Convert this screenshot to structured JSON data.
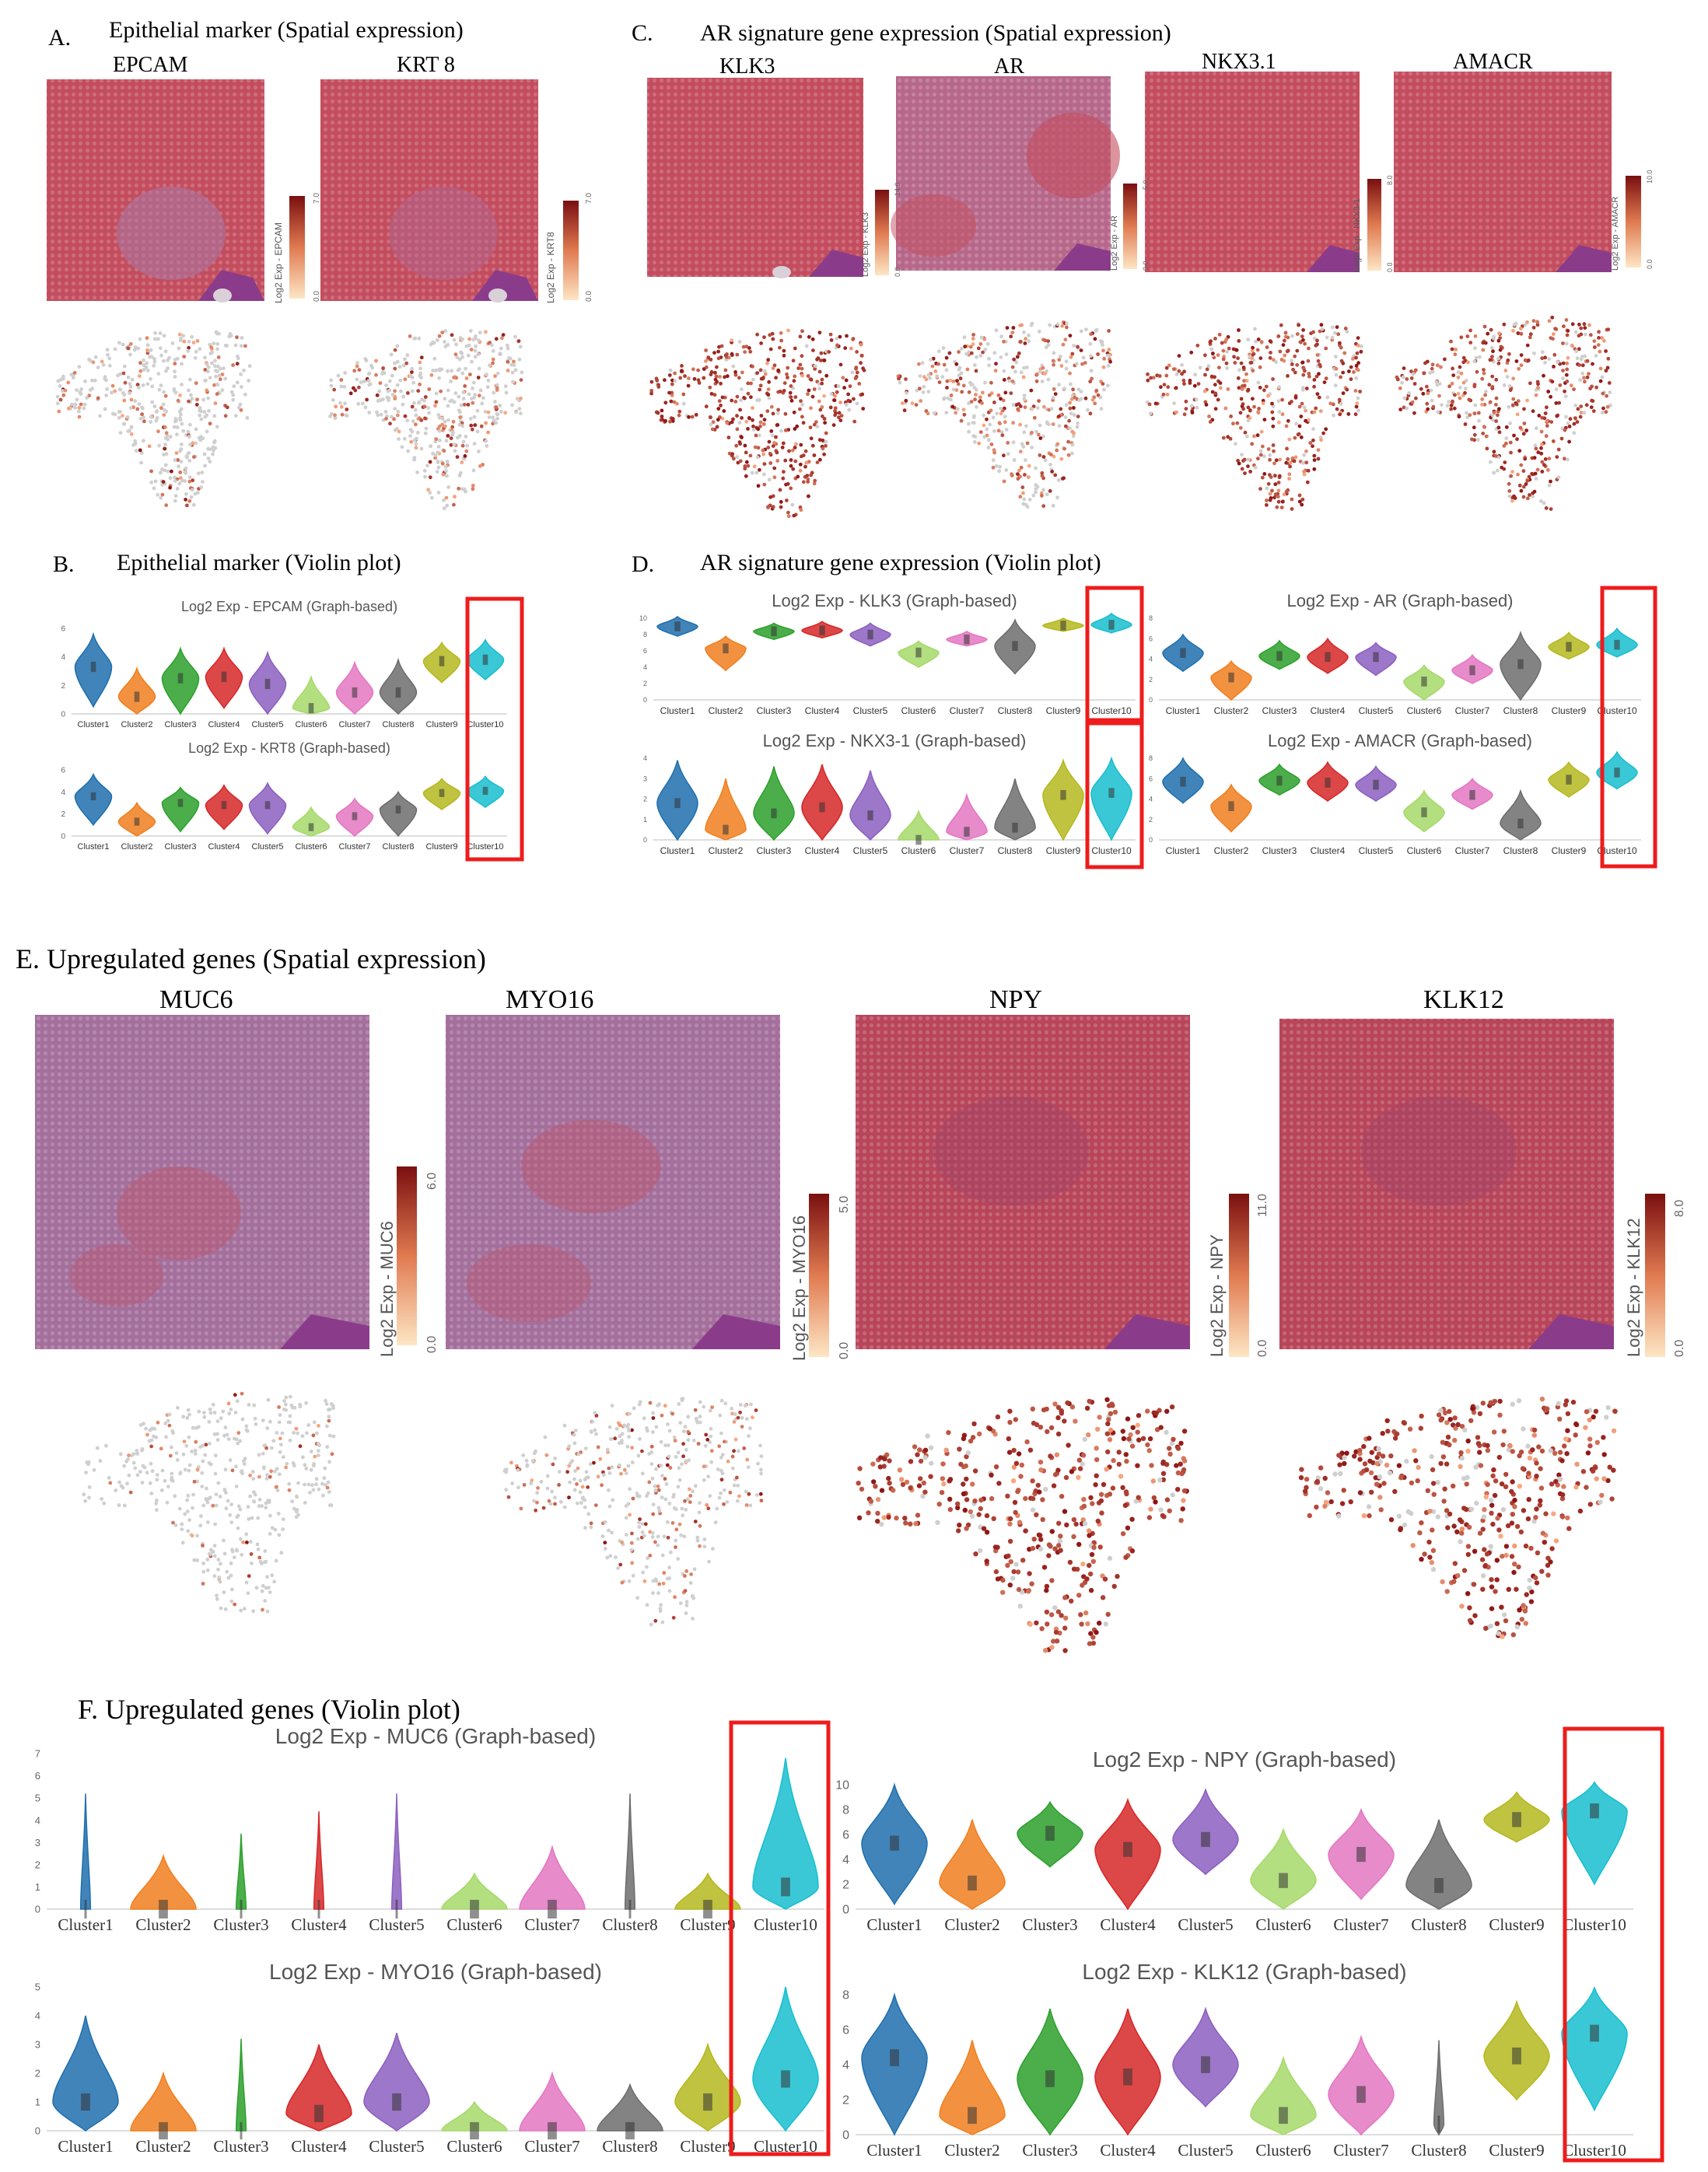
{
  "colors": {
    "clusters": [
      "#1f6fae",
      "#f07f1e",
      "#2ca02c",
      "#d62728",
      "#8c5fbf",
      "#a6d96a",
      "#e377c2",
      "#6d6d6d",
      "#b5b81f",
      "#17becf"
    ],
    "highlight": "#ee1c1c",
    "tissue": "#c84b5c",
    "tissue_muted": "#a9699a",
    "expr_low": "#f8d6a8",
    "expr_high": "#8f1b1b",
    "grey_spot": "#c9c9c9"
  },
  "panel_A": {
    "label": "A.",
    "title": "Epithelial marker (Spatial expression)",
    "genes": [
      {
        "name": "EPCAM",
        "colorbar_label": "Log2 Exp - EPCAM",
        "max": "7.0",
        "min": "0.0"
      },
      {
        "name": "KRT 8",
        "colorbar_label": "Log2 Exp - KRT8",
        "max": "7.0",
        "min": "0.0"
      }
    ]
  },
  "panel_C": {
    "label": "C.",
    "title": "AR signature gene expression (Spatial expression)",
    "genes": [
      {
        "name": "KLK3",
        "colorbar_label": "Log2 Exp - KLK3",
        "max": "14.0",
        "min": "0.0"
      },
      {
        "name": "AR",
        "colorbar_label": "Log2 Exp - AR",
        "max": "5.0",
        "min": "0.0"
      },
      {
        "name": "NKX3.1",
        "colorbar_label": "Log2 Exp - NKX3-1",
        "max": "8.0",
        "min": "0.0"
      },
      {
        "name": "AMACR",
        "colorbar_label": "Log2 Exp - AMACR",
        "max": "10.0",
        "min": "0.0"
      }
    ]
  },
  "panel_B": {
    "label": "B.",
    "title": "Epithelial marker (Violin plot)"
  },
  "panel_D": {
    "label": "D.",
    "title": "AR signature gene expression (Violin plot)"
  },
  "panel_E": {
    "title": "E. Upregulated genes (Spatial expression)",
    "genes": [
      {
        "name": "MUC6",
        "colorbar_label": "Log2 Exp - MUC6",
        "max": "6.0",
        "min": "0.0"
      },
      {
        "name": "MYO16",
        "colorbar_label": "Log2 Exp - MYO16",
        "max": "5.0",
        "min": "0.0"
      },
      {
        "name": "NPY",
        "colorbar_label": "Log2 Exp - NPY",
        "max": "11.0",
        "min": "0.0"
      },
      {
        "name": "KLK12",
        "colorbar_label": "Log2 Exp - KLK12",
        "max": "8.0",
        "min": "0.0"
      }
    ]
  },
  "panel_F": {
    "title": "F. Upregulated genes (Violin plot)"
  },
  "chart_data": [
    {
      "id": "epcam",
      "type": "violin",
      "title": "Log2 Exp - EPCAM (Graph-based)",
      "categories": [
        "Cluster1",
        "Cluster2",
        "Cluster3",
        "Cluster4",
        "Cluster5",
        "Cluster6",
        "Cluster7",
        "Cluster8",
        "Cluster9",
        "Cluster10"
      ],
      "medians": [
        3.3,
        1.2,
        2.5,
        2.6,
        2.1,
        0.4,
        1.5,
        1.5,
        3.7,
        3.8
      ],
      "ymax": [
        5.6,
        3.2,
        4.6,
        4.6,
        4.3,
        2.6,
        3.6,
        3.8,
        5.0,
        5.2
      ],
      "ymin": [
        0.5,
        0,
        0,
        0.4,
        0,
        0,
        0,
        0,
        2.2,
        2.4
      ],
      "yticks": [
        0,
        2,
        4,
        6
      ],
      "ylim": [
        0,
        6
      ],
      "highlight": "Cluster10"
    },
    {
      "id": "krt8",
      "type": "violin",
      "title": "Log2 Exp - KRT8 (Graph-based)",
      "categories": [
        "Cluster1",
        "Cluster2",
        "Cluster3",
        "Cluster4",
        "Cluster5",
        "Cluster6",
        "Cluster7",
        "Cluster8",
        "Cluster9",
        "Cluster10"
      ],
      "medians": [
        3.6,
        1.3,
        3.0,
        2.8,
        2.8,
        0.8,
        1.8,
        2.4,
        3.9,
        4.1
      ],
      "ymax": [
        5.6,
        3.0,
        4.4,
        4.6,
        4.8,
        2.6,
        3.4,
        4.0,
        5.2,
        5.4
      ],
      "ymin": [
        1.0,
        0,
        0.4,
        0.6,
        0.2,
        0,
        0,
        0,
        2.4,
        2.6
      ],
      "yticks": [
        0,
        2,
        4,
        6
      ],
      "ylim": [
        0,
        6
      ],
      "highlight": "Cluster10"
    },
    {
      "id": "klk3",
      "type": "violin",
      "title": "Log2 Exp - KLK3 (Graph-based)",
      "categories": [
        "Cluster1",
        "Cluster2",
        "Cluster3",
        "Cluster4",
        "Cluster5",
        "Cluster6",
        "Cluster7",
        "Cluster8",
        "Cluster9",
        "Cluster10"
      ],
      "medians": [
        9.0,
        6.3,
        8.4,
        8.5,
        8.0,
        5.8,
        7.4,
        6.6,
        9.1,
        9.2
      ],
      "ymax": [
        10.2,
        7.8,
        9.4,
        9.6,
        9.4,
        7.2,
        8.4,
        9.8,
        10.0,
        10.6
      ],
      "ymin": [
        7.8,
        3.6,
        7.4,
        7.6,
        6.6,
        4.0,
        6.6,
        3.2,
        8.4,
        8.2
      ],
      "yticks": [
        0,
        2,
        4,
        6,
        8,
        10
      ],
      "ylim": [
        0,
        10
      ],
      "highlight": "Cluster10"
    },
    {
      "id": "ar",
      "type": "violin",
      "title": "Log2 Exp - AR (Graph-based)",
      "categories": [
        "Cluster1",
        "Cluster2",
        "Cluster3",
        "Cluster4",
        "Cluster5",
        "Cluster6",
        "Cluster7",
        "Cluster8",
        "Cluster9",
        "Cluster10"
      ],
      "medians": [
        4.6,
        2.2,
        4.3,
        4.2,
        4.2,
        1.8,
        2.9,
        3.5,
        5.2,
        5.4
      ],
      "ymax": [
        6.4,
        3.8,
        5.8,
        6.0,
        5.6,
        3.4,
        4.4,
        6.6,
        6.6,
        7.0
      ],
      "ymin": [
        2.8,
        0,
        3.0,
        2.6,
        2.4,
        0,
        1.6,
        0,
        4.0,
        4.2
      ],
      "yticks": [
        0,
        2,
        4,
        6,
        8
      ],
      "ylim": [
        0,
        8
      ],
      "highlight": "Cluster10"
    },
    {
      "id": "nkx",
      "type": "violin",
      "title": "Log2 Exp - NKX3-1 (Graph-based)",
      "categories": [
        "Cluster1",
        "Cluster2",
        "Cluster3",
        "Cluster4",
        "Cluster5",
        "Cluster6",
        "Cluster7",
        "Cluster8",
        "Cluster9",
        "Cluster10"
      ],
      "medians": [
        1.8,
        0.5,
        1.3,
        1.6,
        1.2,
        0,
        0.4,
        0.6,
        2.2,
        2.3
      ],
      "ymax": [
        3.9,
        3.0,
        3.6,
        3.7,
        3.4,
        1.4,
        2.2,
        3.0,
        3.9,
        4.0
      ],
      "ymin": [
        0,
        0,
        0,
        0,
        0,
        0,
        0,
        0,
        0,
        0
      ],
      "yticks": [
        0,
        1,
        2,
        3,
        4
      ],
      "ylim": [
        0,
        4
      ],
      "highlight": "Cluster10"
    },
    {
      "id": "amacr",
      "type": "violin",
      "title": "Log2 Exp - AMACR (Graph-based)",
      "categories": [
        "Cluster1",
        "Cluster2",
        "Cluster3",
        "Cluster4",
        "Cluster5",
        "Cluster6",
        "Cluster7",
        "Cluster8",
        "Cluster9",
        "Cluster10"
      ],
      "medians": [
        5.7,
        3.3,
        5.8,
        5.6,
        5.4,
        2.7,
        4.4,
        1.6,
        5.9,
        6.6
      ],
      "ymax": [
        8.0,
        5.4,
        7.4,
        7.6,
        7.2,
        4.8,
        6.0,
        4.8,
        7.6,
        8.6
      ],
      "ymin": [
        3.6,
        0.8,
        4.4,
        3.8,
        3.8,
        0.8,
        3.0,
        0,
        4.2,
        5.0
      ],
      "yticks": [
        0,
        2,
        4,
        6,
        8
      ],
      "ylim": [
        0,
        8
      ],
      "highlight": "Cluster10"
    },
    {
      "id": "muc6",
      "type": "violin",
      "title": "Log2 Exp - MUC6 (Graph-based)",
      "categories": [
        "Cluster1",
        "Cluster2",
        "Cluster3",
        "Cluster4",
        "Cluster5",
        "Cluster6",
        "Cluster7",
        "Cluster8",
        "Cluster9",
        "Cluster10"
      ],
      "medians": [
        0,
        0,
        0,
        0,
        0,
        0,
        0,
        0,
        0,
        1.0
      ],
      "ymax": [
        5.2,
        2.4,
        3.4,
        4.4,
        5.2,
        1.6,
        2.8,
        5.2,
        1.6,
        6.8
      ],
      "ymin": [
        0,
        0,
        0,
        0,
        0,
        0,
        0,
        0,
        0,
        0
      ],
      "yticks": [
        0,
        1,
        2,
        3,
        4,
        5,
        6,
        7
      ],
      "ylim": [
        0,
        7
      ],
      "highlight": "Cluster10"
    },
    {
      "id": "myo16",
      "type": "violin",
      "title": "Log2 Exp - MYO16 (Graph-based)",
      "categories": [
        "Cluster1",
        "Cluster2",
        "Cluster3",
        "Cluster4",
        "Cluster5",
        "Cluster6",
        "Cluster7",
        "Cluster8",
        "Cluster9",
        "Cluster10"
      ],
      "medians": [
        1.0,
        0,
        0,
        0.6,
        1.0,
        0,
        0,
        0,
        1.0,
        1.8
      ],
      "ymax": [
        4.0,
        2.0,
        3.2,
        3.0,
        3.4,
        1.0,
        2.0,
        1.6,
        3.0,
        5.0
      ],
      "ymin": [
        0,
        0,
        0,
        0,
        0,
        0,
        0,
        0,
        0,
        0
      ],
      "yticks": [
        0,
        1,
        2,
        3,
        4,
        5
      ],
      "ylim": [
        0,
        5
      ],
      "highlight": "Cluster10"
    },
    {
      "id": "npy",
      "type": "violin",
      "title": "Log2 Exp - NPY (Graph-based)",
      "categories": [
        "Cluster1",
        "Cluster2",
        "Cluster3",
        "Cluster4",
        "Cluster5",
        "Cluster6",
        "Cluster7",
        "Cluster8",
        "Cluster9",
        "Cluster10"
      ],
      "medians": [
        5.3,
        2.1,
        6.1,
        4.8,
        5.6,
        2.3,
        4.4,
        1.9,
        7.2,
        7.9
      ],
      "ymax": [
        10.0,
        7.2,
        8.6,
        8.8,
        9.6,
        6.4,
        8.0,
        7.2,
        9.4,
        10.2
      ],
      "ymin": [
        0.4,
        0,
        3.4,
        0,
        2.8,
        0,
        0.8,
        0,
        5.4,
        2.0
      ],
      "yticks": [
        0,
        2,
        4,
        6,
        8,
        10
      ],
      "ylim": [
        0,
        10
      ],
      "highlight": "Cluster10"
    },
    {
      "id": "klk12",
      "type": "violin",
      "title": "Log2 Exp - KLK12 (Graph-based)",
      "categories": [
        "Cluster1",
        "Cluster2",
        "Cluster3",
        "Cluster4",
        "Cluster5",
        "Cluster6",
        "Cluster7",
        "Cluster8",
        "Cluster9",
        "Cluster10"
      ],
      "medians": [
        4.4,
        1.1,
        3.2,
        3.3,
        4.0,
        1.1,
        2.3,
        0.6,
        4.5,
        5.8
      ],
      "ymax": [
        8.0,
        5.4,
        7.2,
        7.2,
        7.2,
        4.4,
        5.6,
        5.4,
        7.6,
        8.4
      ],
      "ymin": [
        0,
        0,
        0,
        0,
        1.6,
        0,
        0,
        0,
        2.0,
        1.4
      ],
      "yticks": [
        0,
        2,
        4,
        6,
        8
      ],
      "ylim": [
        0,
        8
      ],
      "highlight": "Cluster10"
    }
  ]
}
